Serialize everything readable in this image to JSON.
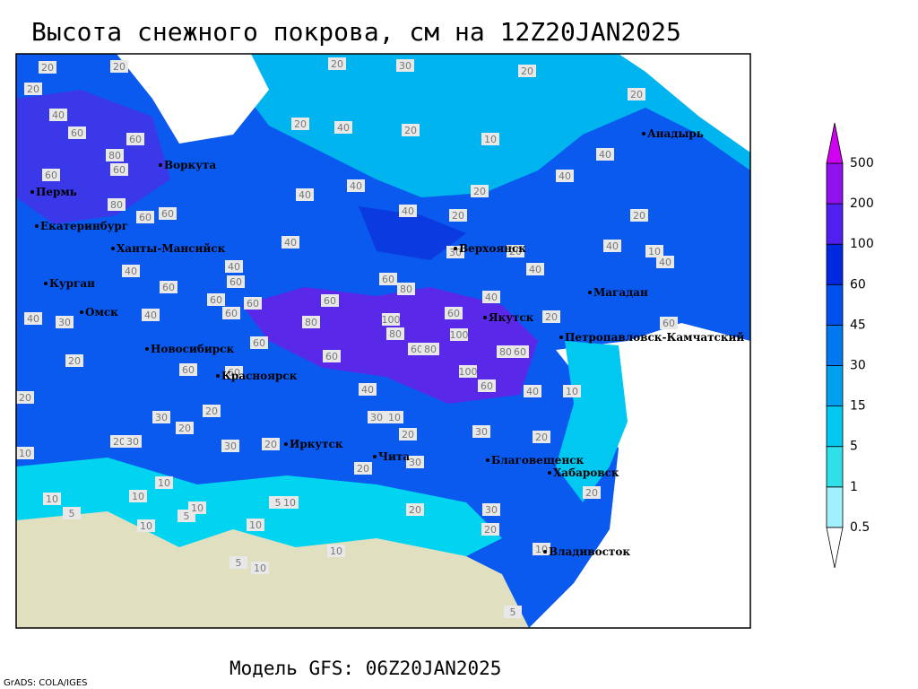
{
  "title": "Высота снежного покрова, см на 12Z20JAN2025",
  "footer": "Модель GFS: 06Z20JAN2025",
  "credit": "GrADS: COLA/IGES",
  "cities": [
    "Анадырь",
    "Воркута",
    "Пермь",
    "Екатеринбург",
    "Ханты-Мансийск",
    "Верхоянск",
    "Курган",
    "Магадан",
    "Омск",
    "Якутск",
    "Петропавловск-Камчатский",
    "Новосибирск",
    "Красноярск",
    "Иркутск",
    "Чита",
    "Благовещенск",
    "Хабаровск",
    "Владивосток"
  ],
  "legend": {
    "levels": [
      0.5,
      1,
      5,
      15,
      30,
      45,
      60,
      100,
      200,
      500
    ],
    "colors": [
      "#ffffff",
      "#a0f0ff",
      "#30e0e8",
      "#00c8f0",
      "#00a0f0",
      "#0078f0",
      "#0050f0",
      "#0028e0",
      "#5020f0",
      "#9010f0",
      "#d000f0"
    ]
  },
  "contour_labels": [
    20,
    20,
    20,
    20,
    30,
    20,
    20,
    40,
    60,
    60,
    80,
    60,
    20,
    20,
    10,
    40,
    60,
    80,
    60,
    60,
    40,
    40,
    40,
    20,
    20,
    40,
    40,
    20,
    40,
    10,
    40,
    40,
    40,
    40,
    40,
    60,
    60,
    60,
    80,
    30,
    20,
    40,
    40,
    30,
    40,
    60,
    60,
    60,
    60,
    80,
    100,
    80,
    60,
    100,
    60,
    80,
    80,
    60,
    100,
    60,
    60,
    60,
    20,
    60,
    60,
    40,
    40,
    10,
    20,
    60,
    20,
    30,
    20,
    20,
    30,
    10,
    30,
    20,
    30,
    30,
    20,
    20,
    20,
    30,
    20,
    10,
    10,
    10,
    5,
    5,
    10,
    20,
    30,
    20,
    10,
    5,
    10,
    10,
    10,
    5,
    10,
    10,
    10,
    20,
    5
  ]
}
